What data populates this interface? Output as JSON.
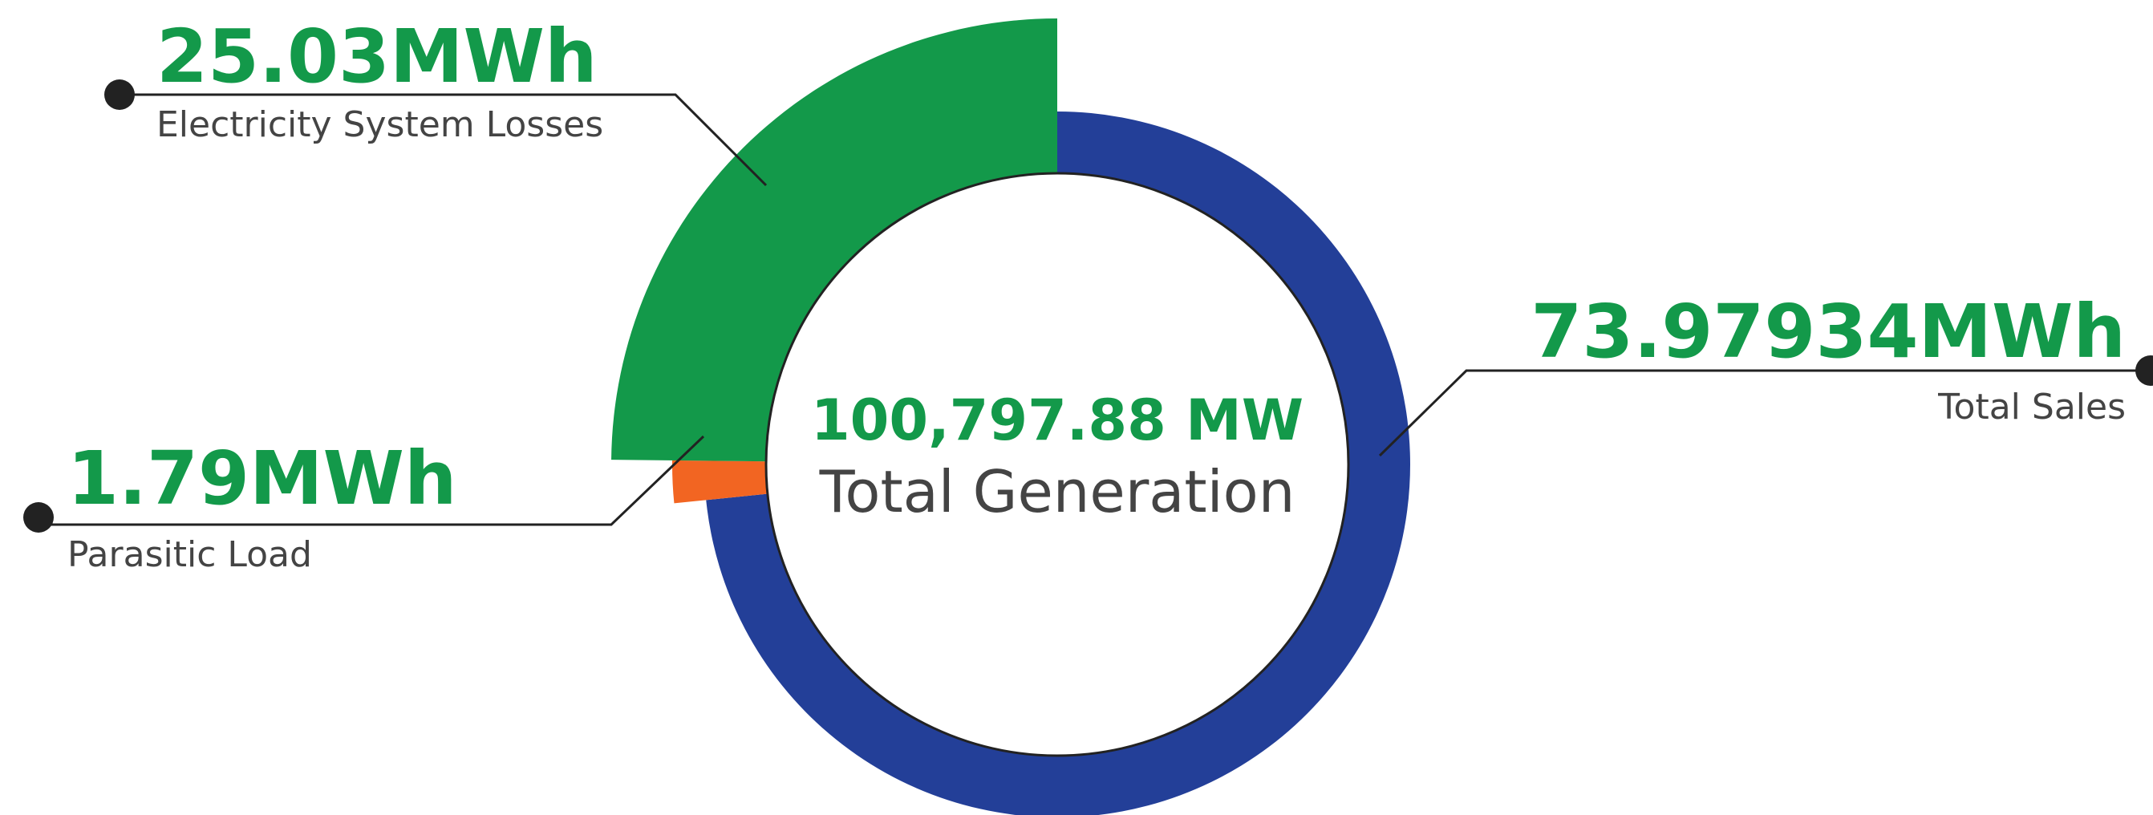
{
  "chart_data": {
    "type": "donut",
    "center_value": "100,797.88 MW",
    "center_label": "Total Generation",
    "categories": [
      "Total Sales",
      "Parasitic Load",
      "Electricity System Losses"
    ],
    "values": [
      73.97934,
      1.79,
      25.03
    ],
    "value_labels": [
      "73.97934MWh",
      "1.79MWh",
      "25.03MWh"
    ],
    "colors": [
      "#233f98",
      "#f26522",
      "#13994a"
    ]
  }
}
